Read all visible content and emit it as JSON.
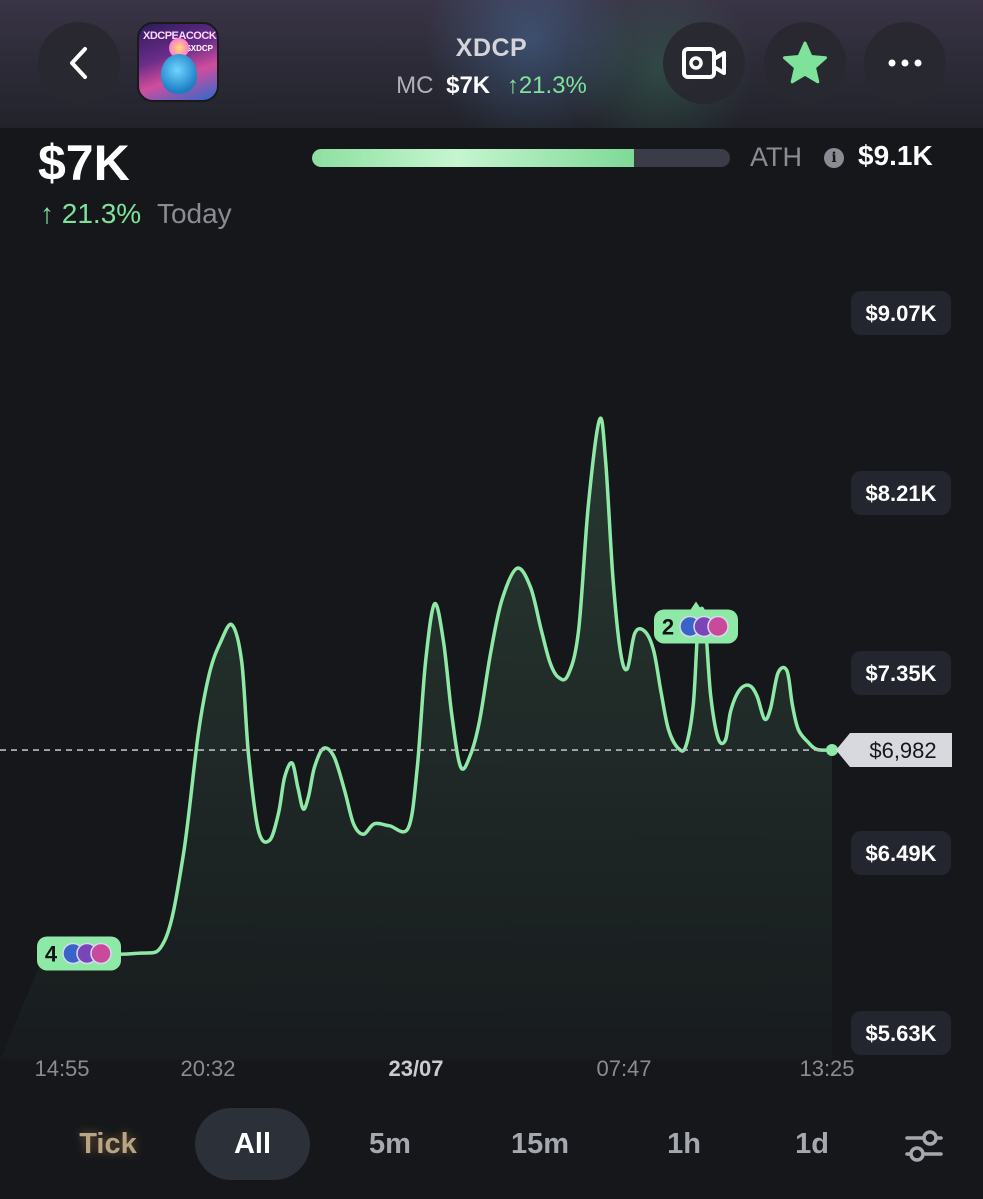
{
  "header": {
    "title": "XDCP",
    "mc_label": "MC",
    "mc_value": "$7K",
    "mc_change": "↑21.3%",
    "token_image_text": "XDCPEACOCK",
    "token_image_tag": "$XDCP",
    "icons": {
      "back": "chevron-left-icon",
      "video": "video-camera-icon",
      "favorite": "star-icon",
      "more": "more-dots-icon"
    },
    "favorite_color": "#7fe29a"
  },
  "summary": {
    "price": "$7K",
    "change": "↑ 21.3%",
    "period": "Today",
    "ath_label": "ATH",
    "ath_value": "$9.1K",
    "ath_progress_fraction": 0.77
  },
  "chart_data": {
    "type": "line",
    "y_unit": "USD market cap",
    "line_color": "#8ee8a6",
    "ylim": [
      5500,
      9200
    ],
    "y_ticks": [
      {
        "value": 9070,
        "label": "$9.07K"
      },
      {
        "value": 8210,
        "label": "$8.21K"
      },
      {
        "value": 7350,
        "label": "$7.35K"
      },
      {
        "value": 6490,
        "label": "$6.49K"
      },
      {
        "value": 5630,
        "label": "$5.63K"
      }
    ],
    "x_ticks": [
      {
        "t": 0.07,
        "label": "14:55",
        "bold": false
      },
      {
        "t": 0.25,
        "label": "20:32",
        "bold": false
      },
      {
        "t": 0.5,
        "label": "23/07",
        "bold": true
      },
      {
        "t": 0.75,
        "label": "07:47",
        "bold": false
      },
      {
        "t": 1.0,
        "label": "13:25",
        "bold": false
      }
    ],
    "current": {
      "value": 6982,
      "label": "$6,982"
    },
    "series": [
      {
        "points": [
          [
            -0.05,
            6010
          ],
          [
            0.07,
            6010
          ],
          [
            0.11,
            6070
          ],
          [
            0.135,
            6480
          ],
          [
            0.155,
            7060
          ],
          [
            0.17,
            7350
          ],
          [
            0.185,
            7500
          ],
          [
            0.2,
            7580
          ],
          [
            0.213,
            7400
          ],
          [
            0.222,
            6960
          ],
          [
            0.235,
            6600
          ],
          [
            0.25,
            6550
          ],
          [
            0.262,
            6680
          ],
          [
            0.27,
            6850
          ],
          [
            0.28,
            6920
          ],
          [
            0.288,
            6800
          ],
          [
            0.295,
            6700
          ],
          [
            0.302,
            6760
          ],
          [
            0.31,
            6900
          ],
          [
            0.322,
            6990
          ],
          [
            0.336,
            6950
          ],
          [
            0.35,
            6790
          ],
          [
            0.362,
            6630
          ],
          [
            0.375,
            6580
          ],
          [
            0.39,
            6630
          ],
          [
            0.41,
            6620
          ],
          [
            0.435,
            6610
          ],
          [
            0.447,
            6900
          ],
          [
            0.458,
            7400
          ],
          [
            0.47,
            7680
          ],
          [
            0.482,
            7500
          ],
          [
            0.493,
            7150
          ],
          [
            0.505,
            6900
          ],
          [
            0.518,
            6960
          ],
          [
            0.53,
            7120
          ],
          [
            0.545,
            7450
          ],
          [
            0.56,
            7700
          ],
          [
            0.58,
            7850
          ],
          [
            0.598,
            7760
          ],
          [
            0.612,
            7560
          ],
          [
            0.624,
            7400
          ],
          [
            0.635,
            7330
          ],
          [
            0.648,
            7340
          ],
          [
            0.662,
            7550
          ],
          [
            0.675,
            8150
          ],
          [
            0.69,
            8560
          ],
          [
            0.698,
            8370
          ],
          [
            0.708,
            7800
          ],
          [
            0.718,
            7450
          ],
          [
            0.727,
            7370
          ],
          [
            0.737,
            7540
          ],
          [
            0.75,
            7550
          ],
          [
            0.762,
            7460
          ],
          [
            0.772,
            7260
          ],
          [
            0.782,
            7080
          ],
          [
            0.795,
            6990
          ],
          [
            0.805,
            7000
          ],
          [
            0.815,
            7200
          ],
          [
            0.822,
            7600
          ],
          [
            0.83,
            7620
          ],
          [
            0.838,
            7250
          ],
          [
            0.848,
            7040
          ],
          [
            0.858,
            7030
          ],
          [
            0.865,
            7170
          ],
          [
            0.877,
            7270
          ],
          [
            0.89,
            7290
          ],
          [
            0.9,
            7240
          ],
          [
            0.91,
            7130
          ],
          [
            0.918,
            7180
          ],
          [
            0.928,
            7350
          ],
          [
            0.94,
            7360
          ],
          [
            0.947,
            7200
          ],
          [
            0.955,
            7080
          ],
          [
            0.968,
            7020
          ],
          [
            0.98,
            6985
          ],
          [
            1.0,
            6982
          ]
        ]
      }
    ],
    "markers": [
      {
        "t": 0.07,
        "value": 6010,
        "count": "4"
      },
      {
        "t": 0.83,
        "value": 7620,
        "count": "2"
      }
    ]
  },
  "tabs": [
    {
      "label": "Tick",
      "active": false
    },
    {
      "label": "All",
      "active": true
    },
    {
      "label": "5m",
      "active": false
    },
    {
      "label": "15m",
      "active": false
    },
    {
      "label": "1h",
      "active": false
    },
    {
      "label": "1d",
      "active": false
    }
  ],
  "tabs_settings_icon": "sliders-icon"
}
